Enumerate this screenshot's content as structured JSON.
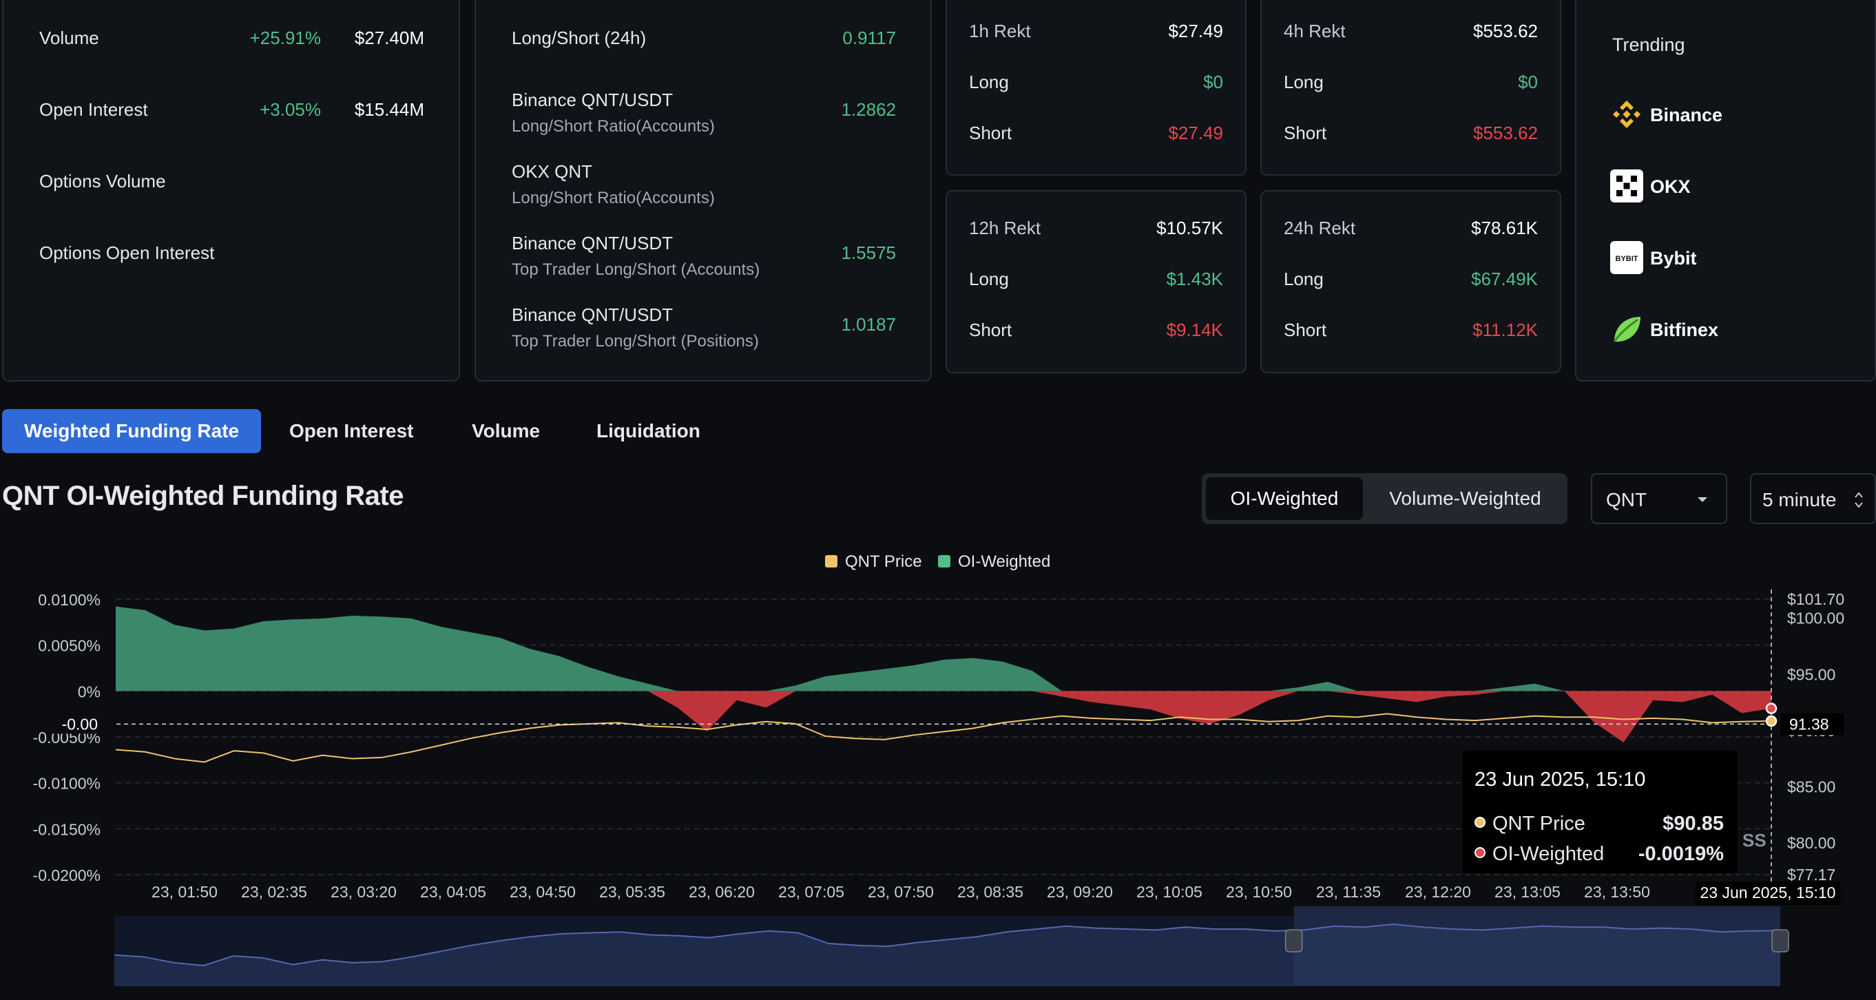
{
  "market_stats": {
    "rows": [
      {
        "label": "Volume",
        "change": "+25.91%",
        "value": "$27.40M"
      },
      {
        "label": "Open Interest",
        "change": "+3.05%",
        "value": "$15.44M"
      },
      {
        "label": "Options Volume",
        "change": "",
        "value": ""
      },
      {
        "label": "Options Open Interest",
        "change": "",
        "value": ""
      }
    ]
  },
  "long_short": {
    "rows": [
      {
        "label": "Long/Short (24h)",
        "sub": "",
        "value": "0.9117"
      },
      {
        "label": "Binance QNT/USDT",
        "sub": "Long/Short Ratio(Accounts)",
        "value": "1.2862"
      },
      {
        "label": "OKX QNT",
        "sub": "Long/Short Ratio(Accounts)",
        "value": ""
      },
      {
        "label": "Binance QNT/USDT",
        "sub": "Top Trader Long/Short (Accounts)",
        "value": "1.5575"
      },
      {
        "label": "Binance QNT/USDT",
        "sub": "Top Trader Long/Short (Positions)",
        "value": "1.0187"
      }
    ]
  },
  "rekt": [
    {
      "title": "1h Rekt",
      "total": "$27.49",
      "long_label": "Long",
      "long": "$0",
      "short_label": "Short",
      "short": "$27.49"
    },
    {
      "title": "4h Rekt",
      "total": "$553.62",
      "long_label": "Long",
      "long": "$0",
      "short_label": "Short",
      "short": "$553.62"
    },
    {
      "title": "12h Rekt",
      "total": "$10.57K",
      "long_label": "Long",
      "long": "$1.43K",
      "short_label": "Short",
      "short": "$9.14K"
    },
    {
      "title": "24h Rekt",
      "total": "$78.61K",
      "long_label": "Long",
      "long": "$67.49K",
      "short_label": "Short",
      "short": "$11.12K"
    }
  ],
  "trending": {
    "title": "Trending",
    "items": [
      {
        "name": "Binance",
        "icon": "binance-icon",
        "color": "#f3ba2f"
      },
      {
        "name": "OKX",
        "icon": "okx-icon",
        "color": "#ffffff"
      },
      {
        "name": "Bybit",
        "icon": "bybit-icon",
        "color": "#ffffff"
      },
      {
        "name": "Bitfinex",
        "icon": "bitfinex-icon",
        "color": "#7ed957"
      }
    ]
  },
  "tabs": [
    "Weighted Funding Rate",
    "Open Interest",
    "Volume",
    "Liquidation"
  ],
  "chart_header": {
    "title": "QNT OI-Weighted Funding Rate",
    "toggle": [
      "OI-Weighted",
      "Volume-Weighted"
    ],
    "coin_select": "QNT",
    "interval_select": "5 minute"
  },
  "colors": {
    "accent": "#2f6bd6",
    "positive": "#4fbf8c",
    "negative": "#e5484d",
    "price_line": "#f0c36a"
  },
  "chart_data": {
    "type": "area",
    "legend": [
      "QNT Price",
      "OI-Weighted"
    ],
    "legend_position": "top-center",
    "x_ticks": [
      "23, 01:50",
      "23, 02:35",
      "23, 03:20",
      "23, 04:05",
      "23, 04:50",
      "23, 05:35",
      "23, 06:20",
      "23, 07:05",
      "23, 07:50",
      "23, 08:35",
      "23, 09:20",
      "23, 10:05",
      "23, 10:50",
      "23, 11:35",
      "23, 12:20",
      "23, 13:05",
      "23, 13:50",
      "23"
    ],
    "y_left_ticks": [
      "0.0100%",
      "0.0050%",
      "0%",
      "-0.0050%",
      "-0.0100%",
      "-0.0150%",
      "-0.0200%"
    ],
    "y_left_range": [
      -0.02,
      0.01
    ],
    "y_right_ticks": [
      "$101.70",
      "$100.00",
      "$95.00",
      "$90.00",
      "$85.00",
      "$80.00",
      "$77.17"
    ],
    "y_right_range": [
      77.17,
      101.7
    ],
    "crosshair": {
      "left_label": "-0.00",
      "right_label": "91.38",
      "x_label": "23 Jun 2025, 15:10"
    },
    "tooltip": {
      "title": "23 Jun 2025, 15:10",
      "price_label": "QNT Price",
      "price_value": "$90.85",
      "oi_label": "OI-Weighted",
      "oi_value": "-0.0019%"
    },
    "watermark": "SS",
    "oi_weighted": [
      0.0092,
      0.0088,
      0.0072,
      0.0066,
      0.0068,
      0.0076,
      0.0078,
      0.0079,
      0.0082,
      0.0081,
      0.0079,
      0.007,
      0.0064,
      0.0058,
      0.0046,
      0.0038,
      0.0026,
      0.0016,
      0.0008,
      -0.0018,
      -0.0044,
      -0.001,
      -0.0018,
      0.0006,
      0.0016,
      0.002,
      0.0024,
      0.0028,
      0.0034,
      0.0036,
      0.0032,
      0.0022,
      -0.0006,
      -0.0012,
      -0.0016,
      -0.002,
      -0.003,
      -0.0036,
      -0.0026,
      -0.001,
      0.0004,
      0.001,
      -0.0004,
      -0.0008,
      -0.0012,
      -0.0006,
      -0.0004,
      0.0004,
      0.0008,
      0.0,
      -0.0034,
      -0.0056,
      -0.001,
      -0.0012,
      -0.0004,
      -0.0024,
      -0.0019
    ],
    "qnt_price": [
      88.3,
      88.1,
      87.5,
      87.2,
      88.2,
      88.0,
      87.3,
      87.8,
      87.5,
      87.6,
      88.1,
      88.7,
      89.3,
      89.8,
      90.2,
      90.5,
      90.6,
      90.7,
      90.4,
      90.3,
      90.1,
      90.5,
      90.8,
      90.6,
      89.5,
      89.3,
      89.2,
      89.6,
      89.9,
      90.2,
      90.7,
      91.0,
      91.3,
      91.1,
      91.0,
      90.9,
      91.2,
      91.0,
      91.0,
      90.8,
      90.9,
      91.3,
      91.2,
      91.5,
      91.2,
      91.0,
      90.9,
      91.1,
      91.3,
      91.2,
      91.2,
      91.0,
      91.1,
      91.0,
      90.7,
      90.8,
      90.85
    ],
    "navigator": {
      "window_start": 0.708,
      "window_end": 1.0
    }
  }
}
